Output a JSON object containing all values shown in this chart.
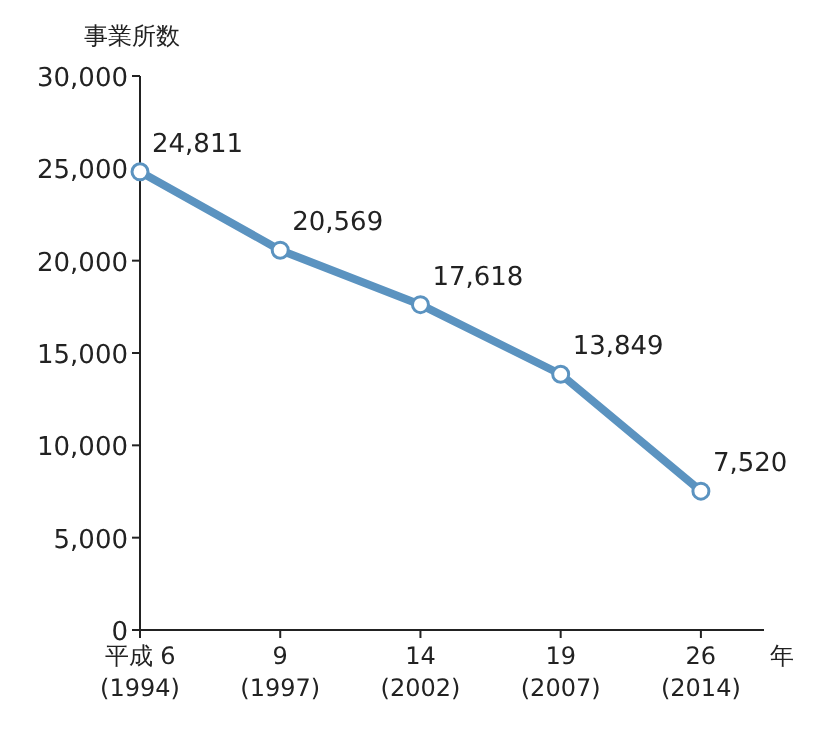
{
  "chart_data": {
    "type": "line",
    "ylabel": "事業所数",
    "xlabel": "年",
    "categories": [
      "平成 6\n(1994)",
      "9\n(1997)",
      "14\n(2002)",
      "19\n(2007)",
      "26\n(2014)"
    ],
    "series": [
      {
        "color": "#5b93c0",
        "values": [
          24811,
          20569,
          17618,
          13849,
          7520
        ],
        "value_labels": [
          "24,811",
          "20,569",
          "17,618",
          "13,849",
          "7,520"
        ]
      }
    ],
    "ylim": [
      0,
      30000
    ],
    "yticks": [
      0,
      {
        "value": 5000,
        "label": "5,000"
      },
      {
        "value": 10000,
        "label": "10,000"
      },
      {
        "value": 15000,
        "label": "15,000"
      },
      {
        "value": 20000,
        "label": "20,000"
      },
      {
        "value": 25000,
        "label": "25,000"
      },
      {
        "value": 30000,
        "label": "30,000"
      }
    ],
    "marker": "circle",
    "grid": false
  }
}
